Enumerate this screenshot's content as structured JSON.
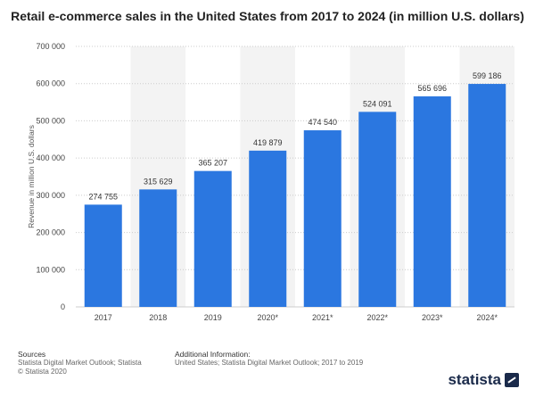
{
  "title": "Retail e-commerce sales in the United States from 2017 to 2024 (in million U.S. dollars)",
  "footer": {
    "sources_heading": "Sources",
    "sources_line1": "Statista Digital Market Outlook; Statista",
    "sources_line2": "© Statista 2020",
    "additional_heading": "Additional Information:",
    "additional_text": "United States; Statista Digital Market Outlook; 2017 to 2019",
    "logo_text": "statista"
  },
  "colors": {
    "bar": "#2b77e0",
    "band": "#f3f3f3",
    "grid": "#cccccc"
  },
  "chart_data": {
    "type": "bar",
    "categories": [
      "2017",
      "2018",
      "2019",
      "2020*",
      "2021*",
      "2022*",
      "2023*",
      "2024*"
    ],
    "values": [
      274755,
      315629,
      365207,
      419879,
      474540,
      524091,
      565696,
      599186
    ],
    "value_labels": [
      "274 755",
      "315 629",
      "365 207",
      "419 879",
      "474 540",
      "524 091",
      "565 696",
      "599 186"
    ],
    "ylabel": "Revenue in million U.S. dollars",
    "ylim": [
      0,
      700000
    ],
    "yticks": [
      0,
      100000,
      200000,
      300000,
      400000,
      500000,
      600000,
      700000
    ],
    "ytick_labels": [
      "0",
      "100 000",
      "200 000",
      "300 000",
      "400 000",
      "500 000",
      "600 000",
      "700 000"
    ],
    "grid": true
  }
}
